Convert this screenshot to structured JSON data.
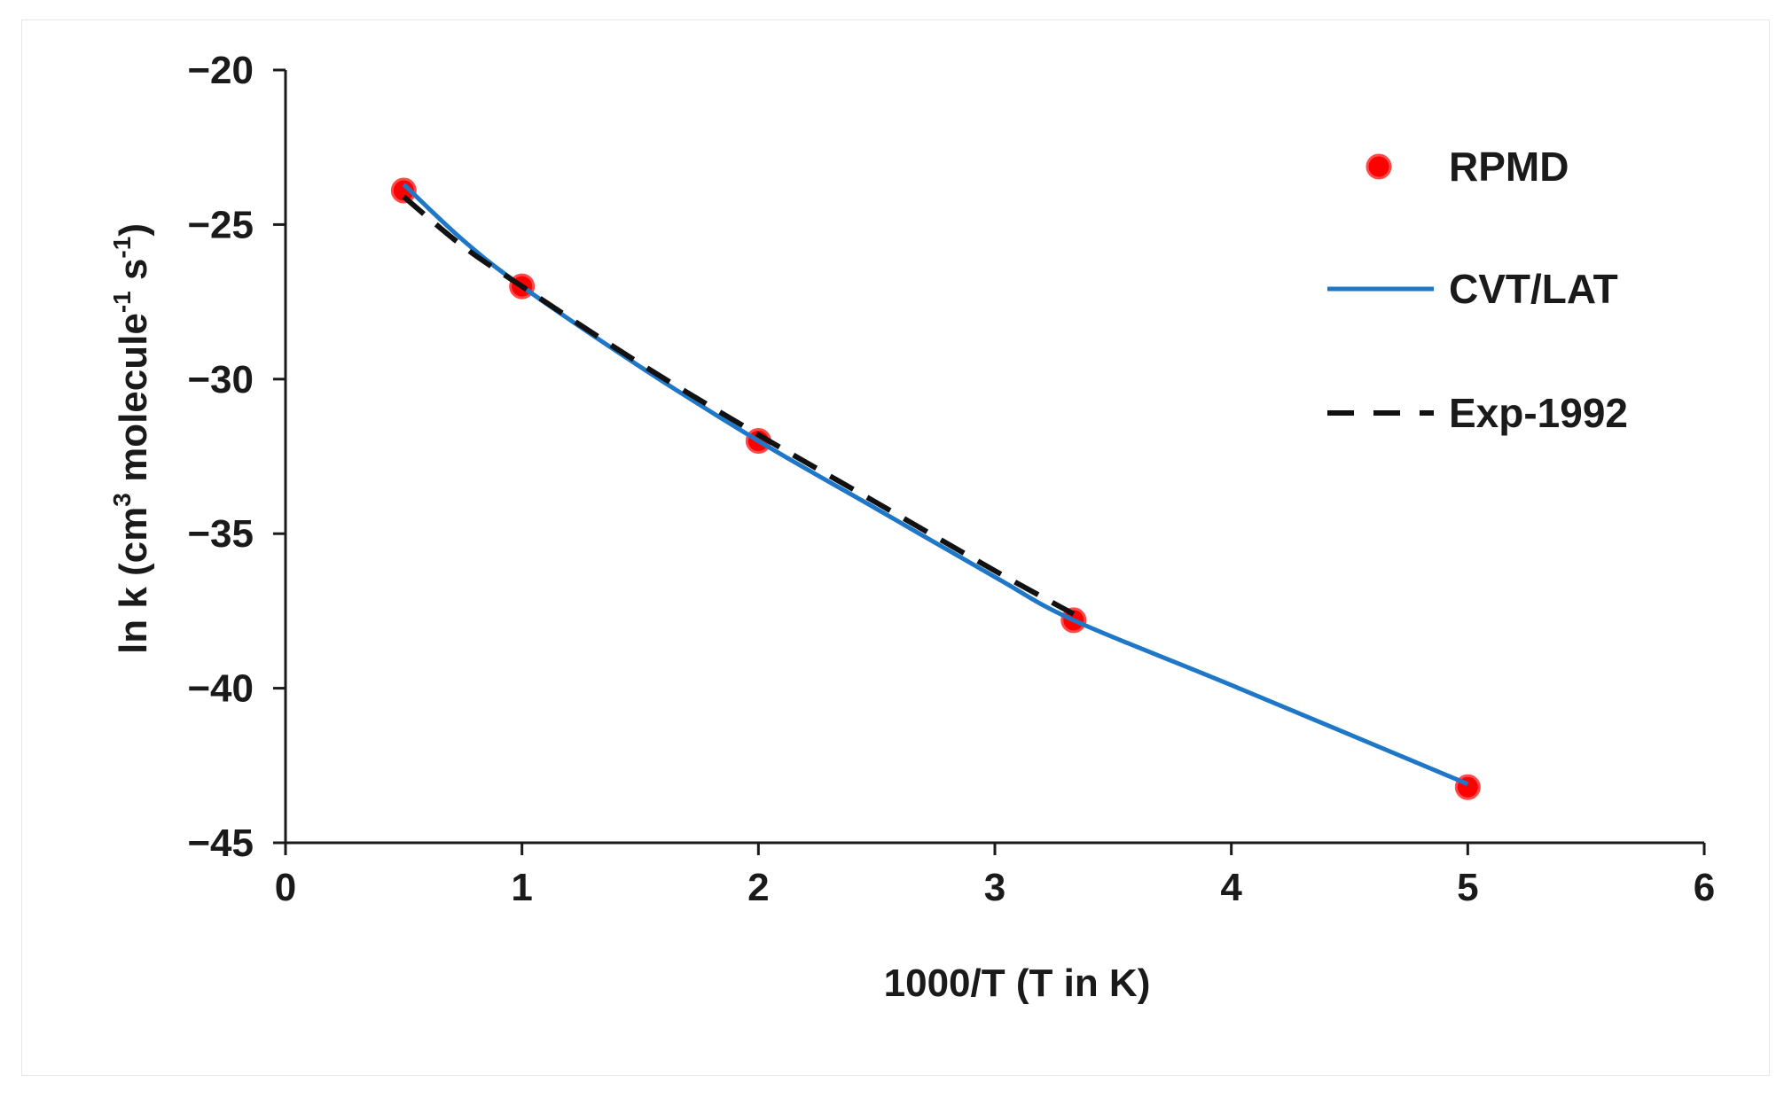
{
  "chart_data": {
    "type": "line",
    "xlabel": "1000/T (T in K)",
    "ylabel": {
      "parts": [
        "ln k (cm",
        "3",
        " molecule",
        "-1",
        " s",
        "-1",
        ")"
      ]
    },
    "xlim": [
      0,
      6
    ],
    "ylim": [
      -45,
      -20
    ],
    "xticks": [
      0,
      1,
      2,
      3,
      4,
      5,
      6
    ],
    "yticks": [
      -45,
      -40,
      -35,
      -30,
      -25,
      -20
    ],
    "xtick_labels": [
      "0",
      "1",
      "2",
      "3",
      "4",
      "5",
      "6"
    ],
    "ytick_labels": [
      "−45",
      "−40",
      "−35",
      "−30",
      "−25",
      "−20"
    ],
    "legend_position": "top-right",
    "grid": false,
    "series": [
      {
        "name": "RPMD",
        "kind": "scatter",
        "color": "#ff0000",
        "x": [
          0.5,
          1.0,
          2.0,
          3.333,
          5.0
        ],
        "y": [
          -23.9,
          -27.0,
          -32.0,
          -37.8,
          -43.2
        ]
      },
      {
        "name": "CVT/LAT",
        "kind": "line",
        "color": "#1f77c8",
        "x": [
          0.5,
          0.75,
          1.0,
          1.5,
          2.0,
          2.5,
          3.0,
          3.333,
          4.0,
          5.0
        ],
        "y": [
          -23.7,
          -25.5,
          -27.0,
          -29.6,
          -32.0,
          -34.2,
          -36.4,
          -37.8,
          -39.9,
          -43.1
        ]
      },
      {
        "name": "Exp-1992",
        "kind": "dashed",
        "color": "#111111",
        "x": [
          0.5,
          0.75,
          1.0,
          1.5,
          2.0,
          2.5,
          3.0,
          3.333
        ],
        "y": [
          -24.1,
          -25.7,
          -27.0,
          -29.5,
          -31.8,
          -34.0,
          -36.2,
          -37.6
        ]
      }
    ]
  }
}
